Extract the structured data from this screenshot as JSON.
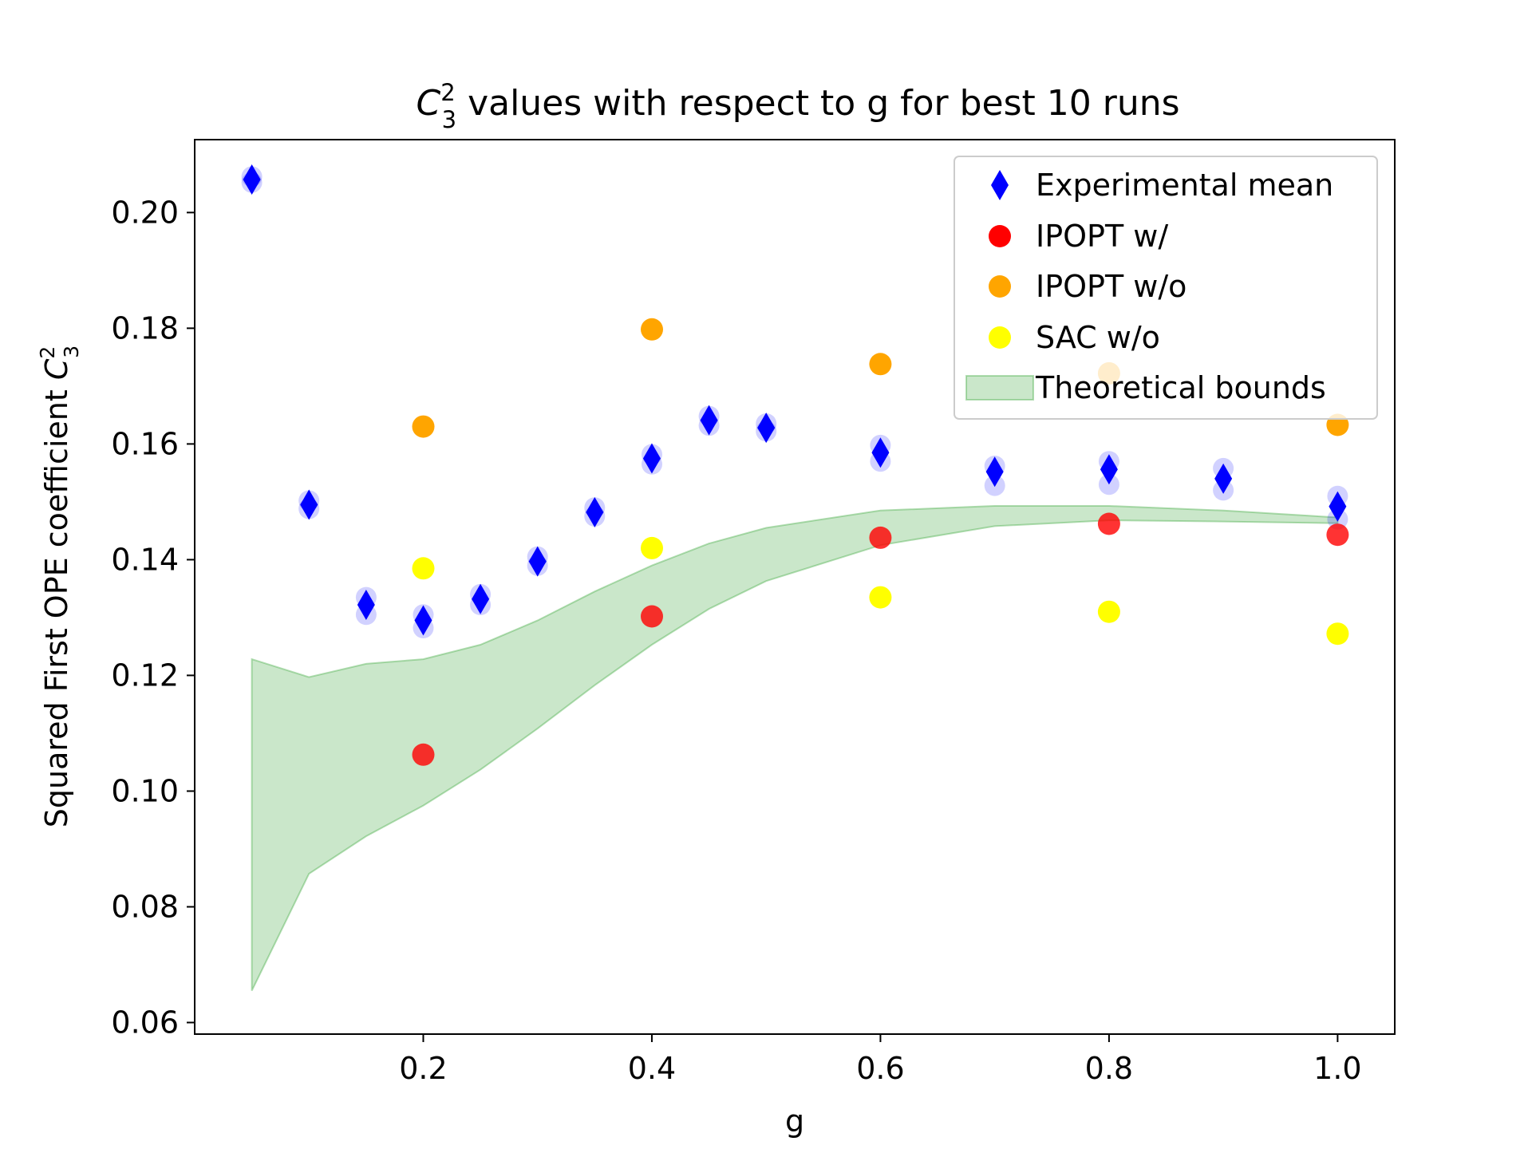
{
  "chart_data": {
    "type": "scatter",
    "title": {
      "symbol": "C",
      "superscript": "2",
      "subscript": "3",
      "text": " values with respect to g for best 10 runs"
    },
    "xlabel": "g",
    "ylabel": {
      "text": "Squared First OPE coefficient ",
      "symbol": "C",
      "superscript": "2",
      "subscript": "3"
    },
    "xlim": [
      0.0,
      1.05
    ],
    "ylim": [
      0.058,
      0.2126
    ],
    "xticks": [
      {
        "value": 0.2,
        "label": "0.2"
      },
      {
        "value": 0.4,
        "label": "0.4"
      },
      {
        "value": 0.6,
        "label": "0.6"
      },
      {
        "value": 0.8,
        "label": "0.8"
      },
      {
        "value": 1.0,
        "label": "1.0"
      }
    ],
    "yticks": [
      {
        "value": 0.06,
        "label": "0.06"
      },
      {
        "value": 0.08,
        "label": "0.08"
      },
      {
        "value": 0.1,
        "label": "0.10"
      },
      {
        "value": 0.12,
        "label": "0.12"
      },
      {
        "value": 0.14,
        "label": "0.14"
      },
      {
        "value": 0.16,
        "label": "0.16"
      },
      {
        "value": 0.18,
        "label": "0.18"
      },
      {
        "value": 0.2,
        "label": "0.20"
      }
    ],
    "grid": false,
    "legend_position": "top-right",
    "colors": {
      "experimental": "#0000ff",
      "ipopt_with": "#ff0000",
      "ipopt_without": "#ffa500",
      "sac_without": "#ffff00",
      "band_fill": "#2ca02c",
      "band_edge": "#2ca02c"
    },
    "band": {
      "name": "Theoretical bounds",
      "x": [
        0.05,
        0.1,
        0.15,
        0.2,
        0.25,
        0.3,
        0.35,
        0.4,
        0.45,
        0.5,
        0.6,
        0.7,
        0.8,
        0.9,
        1.0
      ],
      "upper": [
        0.1228,
        0.1197,
        0.122,
        0.1228,
        0.1253,
        0.1295,
        0.1345,
        0.139,
        0.1428,
        0.1455,
        0.1485,
        0.1493,
        0.1493,
        0.1485,
        0.1473
      ],
      "lower": [
        0.0655,
        0.0857,
        0.0922,
        0.0975,
        0.1037,
        0.1108,
        0.1183,
        0.1253,
        0.1315,
        0.1363,
        0.1425,
        0.1458,
        0.1468,
        0.1466,
        0.1463
      ]
    },
    "experimental_runs": {
      "x": [
        0.05,
        0.1,
        0.15,
        0.2,
        0.25,
        0.3,
        0.35,
        0.4,
        0.45,
        0.5,
        0.6,
        0.7,
        0.8,
        0.9,
        1.0
      ],
      "min": [
        0.2052,
        0.1488,
        0.1305,
        0.1282,
        0.1322,
        0.139,
        0.1475,
        0.1565,
        0.1632,
        0.1622,
        0.157,
        0.1528,
        0.153,
        0.152,
        0.147
      ],
      "max": [
        0.2062,
        0.1502,
        0.1335,
        0.1305,
        0.134,
        0.1405,
        0.149,
        0.1582,
        0.1648,
        0.1635,
        0.1598,
        0.1562,
        0.157,
        0.1558,
        0.151
      ]
    },
    "series": [
      {
        "name": "Experimental mean",
        "marker": "diamond",
        "x": [
          0.05,
          0.1,
          0.15,
          0.2,
          0.25,
          0.3,
          0.35,
          0.4,
          0.45,
          0.5,
          0.6,
          0.7,
          0.8,
          0.9,
          1.0
        ],
        "y": [
          0.2057,
          0.1495,
          0.1322,
          0.1295,
          0.1332,
          0.1397,
          0.1482,
          0.1575,
          0.1641,
          0.1628,
          0.1585,
          0.1552,
          0.1556,
          0.154,
          0.1492
        ]
      },
      {
        "name": "IPOPT w/",
        "marker": "circle",
        "x": [
          0.2,
          0.4,
          0.6,
          0.8,
          1.0
        ],
        "y": [
          0.1063,
          0.1302,
          0.1438,
          0.1462,
          0.1443
        ]
      },
      {
        "name": "IPOPT w/o",
        "marker": "circle",
        "x": [
          0.2,
          0.4,
          0.6,
          0.8,
          1.0
        ],
        "y": [
          0.163,
          0.1798,
          0.1738,
          0.1722,
          0.1633
        ]
      },
      {
        "name": "SAC w/o",
        "marker": "circle",
        "x": [
          0.2,
          0.4,
          0.6,
          0.8,
          1.0
        ],
        "y": [
          0.1385,
          0.142,
          0.1335,
          0.131,
          0.1272
        ]
      }
    ]
  }
}
